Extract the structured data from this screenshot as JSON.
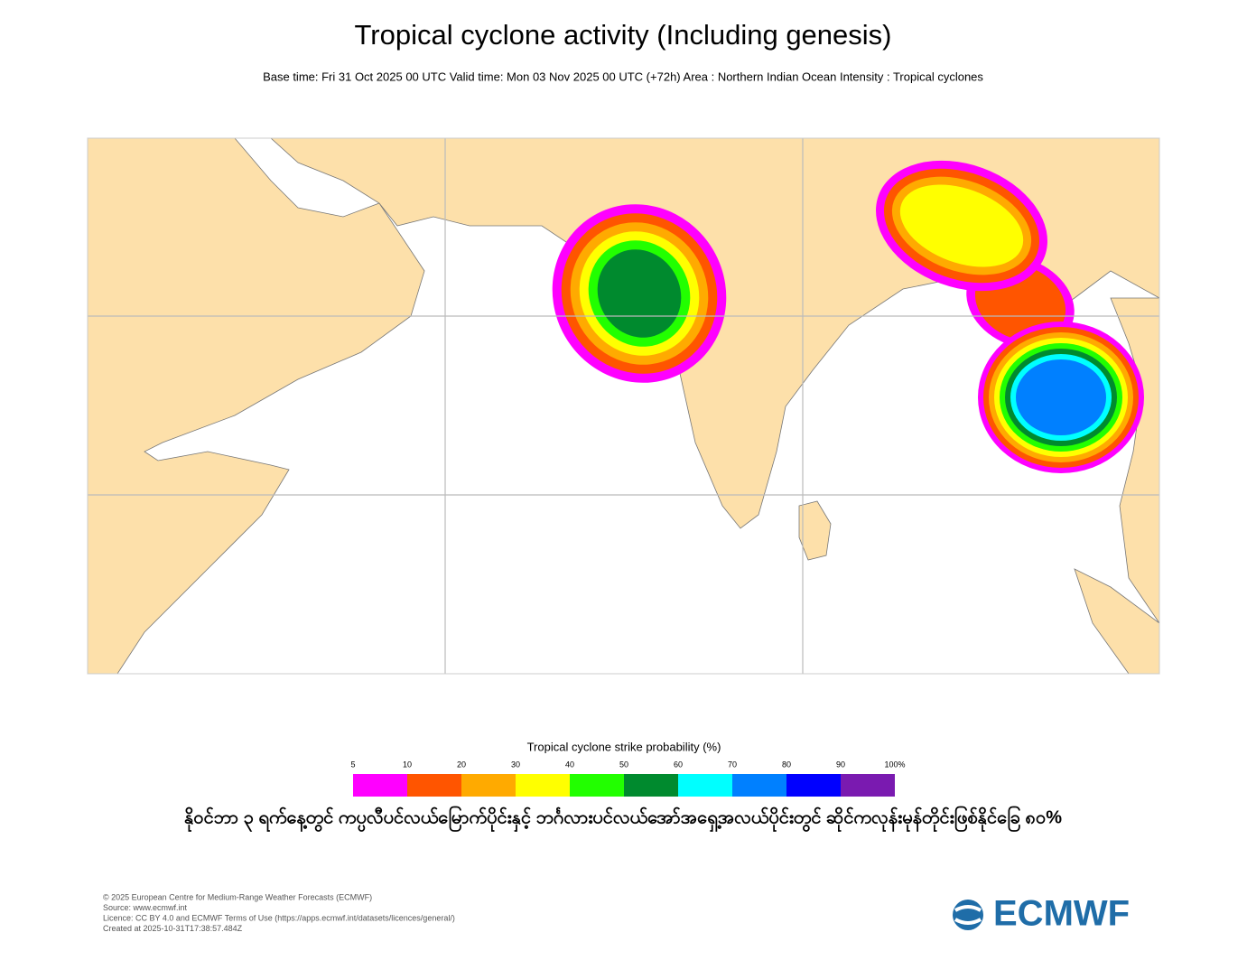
{
  "header": {
    "title": "Tropical cyclone activity (Including genesis)",
    "subtitle": "Base time: Fri 31 Oct 2025 00 UTC Valid time: Mon 03 Nov 2025 00 UTC (+72h) Area : Northern Indian Ocean Intensity : Tropical cyclones"
  },
  "colorbar": {
    "title": "Tropical cyclone strike probability (%)",
    "ticks": [
      5,
      10,
      20,
      30,
      40,
      50,
      60,
      70,
      80,
      90,
      {
        "value": 100,
        "label": "100%"
      }
    ],
    "colors": [
      "#ff00ff",
      "#ff5500",
      "#ffaa00",
      "#ffff00",
      "#22ff00",
      "#008a2e",
      "#00ffff",
      "#0080ff",
      "#0000ff",
      "#7a1ab0"
    ]
  },
  "caption": "နိုဝင်ဘာ ၃ ရက်နေ့တွင် ကပ္ပလီပင်လယ်မြောက်ပိုင်းနှင့် ဘင်္ဂလားပင်လယ်အော်အရှေ့အလယ်ပိုင်းတွင် ဆိုင်ကလုန်းမုန်တိုင်းဖြစ်နိုင်ခြေ ၈၀%",
  "footer": {
    "lines": [
      "© 2025 European Centre for Medium-Range Weather Forecasts (ECMWF)",
      "Source: www.ecmwf.int",
      "Licence: CC BY 4.0 and ECMWF Terms of Use (https://apps.ecmwf.int/datasets/licences/general/)",
      "Created at 2025-10-31T17:38:57.484Z"
    ],
    "logo": "ECMWF"
  }
}
